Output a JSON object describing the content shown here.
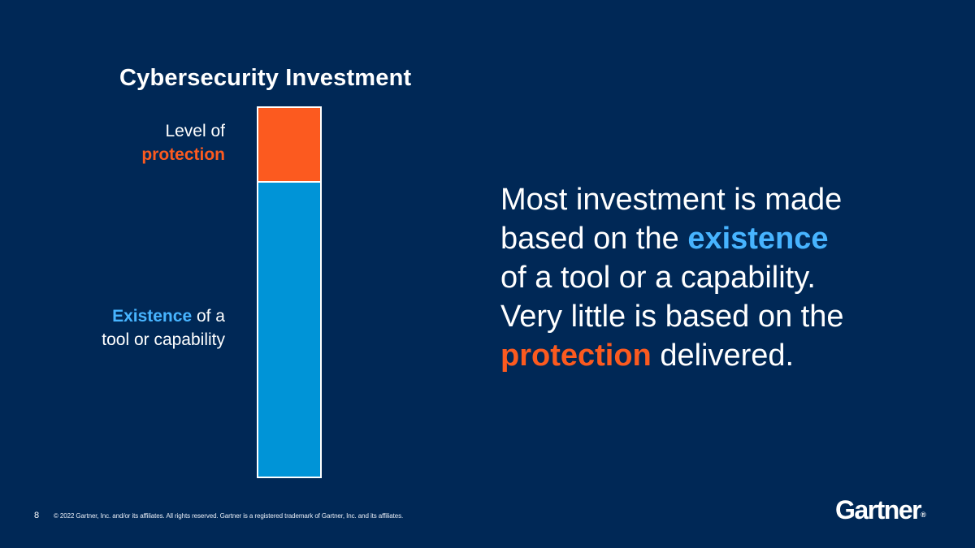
{
  "slide": {
    "title": "Cybersecurity Investment",
    "labels": {
      "protection_line1": "Level of",
      "protection_line2": "protection",
      "existence_highlight": "Existence",
      "existence_rest1": " of a",
      "existence_line2": "tool or capability"
    },
    "message": {
      "line1": "Most investment is made",
      "line2_a": "based on the ",
      "line2_highlight": "existence",
      "line3": "of a tool or a capability.",
      "line4": "Very little is based on the",
      "line5_highlight": "protection",
      "line5_rest": " delivered."
    }
  },
  "bar": {
    "protection_share": 0.2,
    "existence_share": 0.8
  },
  "footer": {
    "page_number": "8",
    "copyright": "© 2022 Gartner, Inc. and/or its affiliates. All rights reserved. Gartner is a registered trademark of Gartner, Inc. and its affiliates."
  },
  "logo": {
    "text": "Gartner",
    "mark": "®"
  },
  "colors": {
    "background": "#002856",
    "protection": "#fc5a1f",
    "existence": "#0094d7",
    "highlight_blue": "#47b4ff"
  }
}
